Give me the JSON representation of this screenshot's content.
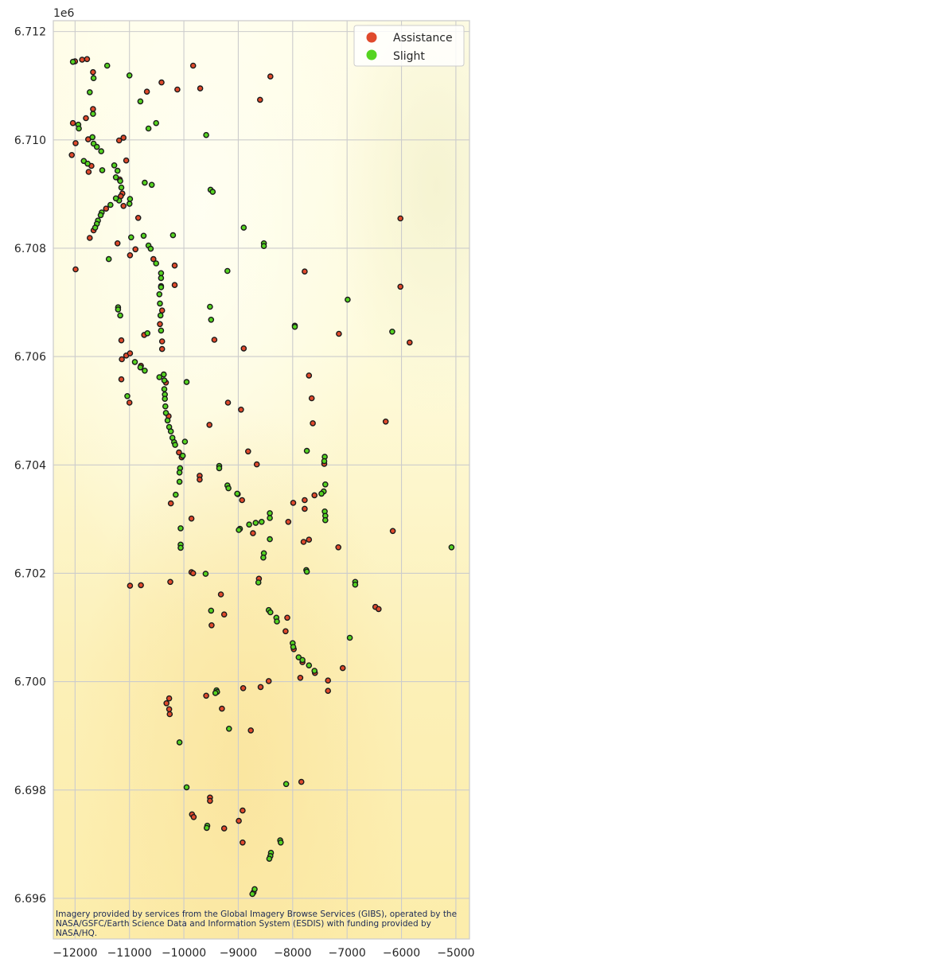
{
  "chart_data": {
    "type": "scatter",
    "title": "",
    "xlabel": "",
    "ylabel": "",
    "y_offset_label": "1e6",
    "xlim": [
      -12400,
      -4750
    ],
    "ylim": [
      6695250,
      6712200
    ],
    "xticks": [
      -12000,
      -11000,
      -10000,
      -9000,
      -8000,
      -7000,
      -6000,
      -5000
    ],
    "xtick_labels": [
      "−12000",
      "−11000",
      "−10000",
      "−9000",
      "−8000",
      "−7000",
      "−6000",
      "−5000"
    ],
    "yticks": [
      6696000,
      6698000,
      6700000,
      6702000,
      6704000,
      6706000,
      6708000,
      6710000,
      6712000
    ],
    "ytick_labels": [
      "6.696",
      "6.698",
      "6.700",
      "6.702",
      "6.704",
      "6.706",
      "6.708",
      "6.710",
      "6.712"
    ],
    "grid": true,
    "legend_position": "top-right",
    "basemap_attribution": "Imagery provided by services from the Global Imagery Browse Services (GIBS), operated by the NASA/GSFC/Earth Science Data and Information System (ESDIS) with funding provided by NASA/HQ.",
    "series": [
      {
        "name": "Assistance",
        "color": "#e04a2c",
        "points": [
          [
            -12000,
            6711450
          ],
          [
            -11870,
            6711480
          ],
          [
            -11780,
            6711490
          ],
          [
            -11670,
            6711250
          ],
          [
            -9830,
            6711370
          ],
          [
            -9700,
            6710950
          ],
          [
            -10120,
            6710930
          ],
          [
            -10410,
            6711060
          ],
          [
            -10680,
            6710890
          ],
          [
            -8410,
            6711170
          ],
          [
            -8600,
            6710740
          ],
          [
            -12040,
            6710310
          ],
          [
            -11990,
            6709940
          ],
          [
            -11800,
            6710400
          ],
          [
            -11670,
            6710570
          ],
          [
            -12060,
            6709720
          ],
          [
            -11760,
            6710010
          ],
          [
            -11700,
            6709520
          ],
          [
            -11750,
            6709410
          ],
          [
            -11190,
            6709990
          ],
          [
            -11110,
            6710040
          ],
          [
            -11060,
            6709620
          ],
          [
            -11180,
            6709270
          ],
          [
            -11130,
            6709010
          ],
          [
            -11160,
            6708960
          ],
          [
            -11430,
            6708730
          ],
          [
            -11110,
            6708780
          ],
          [
            -10840,
            6708560
          ],
          [
            -11660,
            6708330
          ],
          [
            -11730,
            6708190
          ],
          [
            -11990,
            6707610
          ],
          [
            -11220,
            6708090
          ],
          [
            -10990,
            6707870
          ],
          [
            -10890,
            6707980
          ],
          [
            -10560,
            6707800
          ],
          [
            -10170,
            6707680
          ],
          [
            -10170,
            6707320
          ],
          [
            -10420,
            6707300
          ],
          [
            -10400,
            6706850
          ],
          [
            -10400,
            6706280
          ],
          [
            -10400,
            6706140
          ],
          [
            -10440,
            6706600
          ],
          [
            -10730,
            6706400
          ],
          [
            -11150,
            6706300
          ],
          [
            -11060,
            6706020
          ],
          [
            -10990,
            6706060
          ],
          [
            -11140,
            6705950
          ],
          [
            -10790,
            6705830
          ],
          [
            -11150,
            6705580
          ],
          [
            -11000,
            6705150
          ],
          [
            -10280,
            6704900
          ],
          [
            -10330,
            6705520
          ],
          [
            -9440,
            6706310
          ],
          [
            -8900,
            6706150
          ],
          [
            -7960,
            6706570
          ],
          [
            -7150,
            6706420
          ],
          [
            -6020,
            6708550
          ],
          [
            -6020,
            6707290
          ],
          [
            -5850,
            6706260
          ],
          [
            -7780,
            6707570
          ],
          [
            -7700,
            6705650
          ],
          [
            -7650,
            6705230
          ],
          [
            -7630,
            6704770
          ],
          [
            -6290,
            6704800
          ],
          [
            -9530,
            6704740
          ],
          [
            -9190,
            6705150
          ],
          [
            -8950,
            6705020
          ],
          [
            -10090,
            6704230
          ],
          [
            -10040,
            6704140
          ],
          [
            -9710,
            6703800
          ],
          [
            -9710,
            6703730
          ],
          [
            -8820,
            6704250
          ],
          [
            -8660,
            6704010
          ],
          [
            -7420,
            6704020
          ],
          [
            -9010,
            6703460
          ],
          [
            -8930,
            6703350
          ],
          [
            -10240,
            6703290
          ],
          [
            -9860,
            6703010
          ],
          [
            -8080,
            6702950
          ],
          [
            -7990,
            6703300
          ],
          [
            -7780,
            6703350
          ],
          [
            -7780,
            6703190
          ],
          [
            -7600,
            6703440
          ],
          [
            -7800,
            6702580
          ],
          [
            -7700,
            6702620
          ],
          [
            -7160,
            6702480
          ],
          [
            -6160,
            6702780
          ],
          [
            -9860,
            6702020
          ],
          [
            -9830,
            6702000
          ],
          [
            -10990,
            6701770
          ],
          [
            -10790,
            6701780
          ],
          [
            -10250,
            6701840
          ],
          [
            -9320,
            6701610
          ],
          [
            -9260,
            6701240
          ],
          [
            -9490,
            6701040
          ],
          [
            -8620,
            6701900
          ],
          [
            -8730,
            6702740
          ],
          [
            -8100,
            6701180
          ],
          [
            -8130,
            6700930
          ],
          [
            -7980,
            6700600
          ],
          [
            -7820,
            6700360
          ],
          [
            -7590,
            6700160
          ],
          [
            -7860,
            6700070
          ],
          [
            -7080,
            6700250
          ],
          [
            -6480,
            6701380
          ],
          [
            -6420,
            6701340
          ],
          [
            -7350,
            6700020
          ],
          [
            -7350,
            6699830
          ],
          [
            -8440,
            6700010
          ],
          [
            -8590,
            6699900
          ],
          [
            -8910,
            6699880
          ],
          [
            -9590,
            6699740
          ],
          [
            -10320,
            6699600
          ],
          [
            -10270,
            6699690
          ],
          [
            -10270,
            6699490
          ],
          [
            -10260,
            6699400
          ],
          [
            -9300,
            6699500
          ],
          [
            -8770,
            6699100
          ],
          [
            -7840,
            6698150
          ],
          [
            -9520,
            6697860
          ],
          [
            -9520,
            6697800
          ],
          [
            -9850,
            6697550
          ],
          [
            -9820,
            6697500
          ],
          [
            -8920,
            6697620
          ],
          [
            -8990,
            6697430
          ],
          [
            -9260,
            6697290
          ],
          [
            -8920,
            6697030
          ],
          [
            -8720,
            6696110
          ]
        ]
      },
      {
        "name": "Slight",
        "color": "#55d421",
        "points": [
          [
            -12040,
            6711440
          ],
          [
            -11410,
            6711370
          ],
          [
            -11660,
            6711140
          ],
          [
            -11000,
            6711190
          ],
          [
            -11730,
            6710880
          ],
          [
            -11670,
            6710480
          ],
          [
            -10800,
            6710710
          ],
          [
            -10510,
            6710310
          ],
          [
            -10650,
            6710210
          ],
          [
            -9590,
            6710090
          ],
          [
            -11680,
            6710050
          ],
          [
            -11660,
            6709930
          ],
          [
            -11600,
            6709870
          ],
          [
            -11520,
            6709790
          ],
          [
            -11840,
            6709610
          ],
          [
            -11770,
            6709560
          ],
          [
            -11940,
            6710280
          ],
          [
            -11930,
            6710210
          ],
          [
            -11500,
            6709440
          ],
          [
            -11280,
            6709530
          ],
          [
            -11220,
            6709430
          ],
          [
            -11250,
            6709310
          ],
          [
            -11170,
            6709240
          ],
          [
            -11150,
            6709120
          ],
          [
            -11190,
            6708880
          ],
          [
            -11250,
            6708920
          ],
          [
            -11350,
            6708800
          ],
          [
            -11510,
            6708660
          ],
          [
            -11530,
            6708610
          ],
          [
            -11580,
            6708510
          ],
          [
            -11600,
            6708450
          ],
          [
            -11630,
            6708380
          ],
          [
            -10990,
            6708910
          ],
          [
            -11000,
            6708820
          ],
          [
            -10720,
            6709210
          ],
          [
            -10590,
            6709170
          ],
          [
            -9510,
            6709080
          ],
          [
            -9470,
            6709040
          ],
          [
            -8900,
            6708380
          ],
          [
            -8530,
            6708090
          ],
          [
            -8530,
            6708040
          ],
          [
            -10200,
            6708240
          ],
          [
            -10740,
            6708230
          ],
          [
            -10970,
            6708200
          ],
          [
            -11380,
            6707800
          ],
          [
            -10650,
            6708050
          ],
          [
            -10610,
            6707990
          ],
          [
            -10510,
            6707720
          ],
          [
            -10420,
            6707540
          ],
          [
            -10420,
            6707450
          ],
          [
            -10420,
            6707280
          ],
          [
            -10450,
            6707150
          ],
          [
            -10440,
            6706980
          ],
          [
            -9200,
            6707580
          ],
          [
            -6990,
            6707050
          ],
          [
            -11210,
            6706910
          ],
          [
            -11210,
            6706870
          ],
          [
            -11170,
            6706760
          ],
          [
            -10430,
            6706760
          ],
          [
            -10420,
            6706480
          ],
          [
            -10670,
            6706430
          ],
          [
            -9520,
            6706920
          ],
          [
            -9500,
            6706680
          ],
          [
            -6170,
            6706460
          ],
          [
            -7960,
            6706550
          ],
          [
            -10900,
            6705900
          ],
          [
            -10800,
            6705800
          ],
          [
            -10720,
            6705740
          ],
          [
            -10450,
            6705620
          ],
          [
            -10370,
            6705670
          ],
          [
            -10360,
            6705560
          ],
          [
            -10360,
            6705400
          ],
          [
            -10350,
            6705300
          ],
          [
            -10350,
            6705220
          ],
          [
            -10340,
            6705080
          ],
          [
            -10330,
            6704960
          ],
          [
            -9950,
            6705530
          ],
          [
            -11040,
            6705270
          ],
          [
            -10300,
            6704820
          ],
          [
            -10270,
            6704700
          ],
          [
            -10240,
            6704620
          ],
          [
            -10210,
            6704500
          ],
          [
            -10180,
            6704420
          ],
          [
            -10160,
            6704370
          ],
          [
            -9980,
            6704430
          ],
          [
            -10020,
            6704170
          ],
          [
            -10070,
            6703940
          ],
          [
            -10080,
            6703860
          ],
          [
            -10080,
            6703690
          ],
          [
            -10150,
            6703450
          ],
          [
            -9350,
            6703980
          ],
          [
            -9350,
            6703940
          ],
          [
            -9200,
            6703620
          ],
          [
            -9180,
            6703570
          ],
          [
            -9020,
            6703470
          ],
          [
            -7740,
            6704260
          ],
          [
            -7410,
            6704150
          ],
          [
            -7420,
            6704070
          ],
          [
            -7400,
            6703640
          ],
          [
            -7430,
            6703510
          ],
          [
            -7470,
            6703470
          ],
          [
            -7410,
            6703140
          ],
          [
            -7400,
            6703060
          ],
          [
            -7400,
            6702980
          ],
          [
            -8420,
            6703110
          ],
          [
            -8420,
            6703020
          ],
          [
            -8570,
            6702950
          ],
          [
            -8680,
            6702930
          ],
          [
            -8800,
            6702900
          ],
          [
            -8970,
            6702820
          ],
          [
            -8990,
            6702800
          ],
          [
            -10060,
            6702830
          ],
          [
            -10060,
            6702530
          ],
          [
            -10060,
            6702470
          ],
          [
            -8420,
            6702630
          ],
          [
            -8530,
            6702370
          ],
          [
            -8540,
            6702290
          ],
          [
            -9600,
            6701990
          ],
          [
            -8630,
            6701830
          ],
          [
            -7750,
            6702060
          ],
          [
            -7740,
            6702030
          ],
          [
            -6850,
            6701840
          ],
          [
            -6850,
            6701790
          ],
          [
            -5080,
            6702480
          ],
          [
            -9500,
            6701310
          ],
          [
            -8440,
            6701320
          ],
          [
            -8410,
            6701280
          ],
          [
            -8300,
            6701180
          ],
          [
            -8290,
            6701110
          ],
          [
            -8000,
            6700710
          ],
          [
            -7990,
            6700640
          ],
          [
            -7890,
            6700450
          ],
          [
            -7820,
            6700400
          ],
          [
            -7700,
            6700300
          ],
          [
            -7600,
            6700200
          ],
          [
            -6950,
            6700810
          ],
          [
            -9400,
            6699840
          ],
          [
            -9390,
            6699810
          ],
          [
            -9420,
            6699790
          ],
          [
            -9170,
            6699130
          ],
          [
            -10080,
            6698880
          ],
          [
            -8120,
            6698110
          ],
          [
            -9950,
            6698050
          ],
          [
            -9570,
            6697340
          ],
          [
            -9580,
            6697300
          ],
          [
            -8230,
            6697070
          ],
          [
            -8220,
            6697030
          ],
          [
            -8400,
            6696840
          ],
          [
            -8410,
            6696780
          ],
          [
            -8430,
            6696730
          ],
          [
            -8700,
            6696170
          ],
          [
            -8740,
            6696080
          ]
        ]
      }
    ]
  }
}
